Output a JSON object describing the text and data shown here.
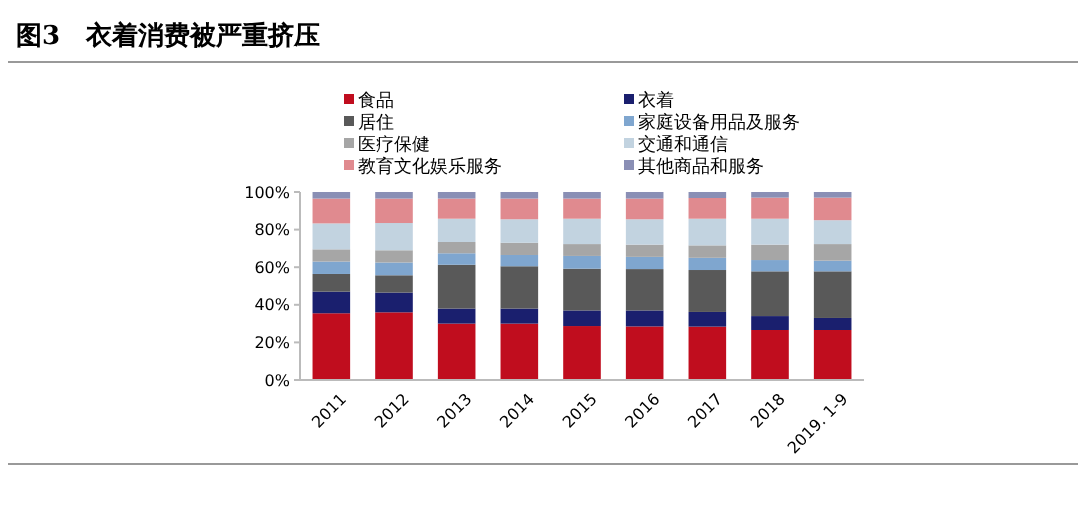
{
  "chart_data": {
    "type": "bar",
    "title": "图3　衣着消费被严重挤压",
    "stacked": true,
    "legend": "top",
    "grid": false,
    "categories": [
      "2011",
      "2012",
      "2013",
      "2014",
      "2015",
      "2016",
      "2017",
      "2018",
      "2019. 1-9"
    ],
    "ylim": [
      0,
      100
    ],
    "yticks": [
      {
        "value": 0,
        "label": "0%"
      },
      {
        "value": 20,
        "label": "20%"
      },
      {
        "value": 40,
        "label": "40%"
      },
      {
        "value": 60,
        "label": "60%"
      },
      {
        "value": 80,
        "label": "80%"
      },
      {
        "value": 100,
        "label": "100%"
      }
    ],
    "series": [
      {
        "name": "食品",
        "color": "#c00d1e",
        "values": [
          35.5,
          36,
          30,
          30,
          28.7,
          28.5,
          28.4,
          26.6,
          26.6
        ]
      },
      {
        "name": "衣着",
        "color": "#1a1f6e",
        "values": [
          11.5,
          10.5,
          8,
          8,
          8.3,
          8.5,
          7.8,
          7.4,
          6.4
        ]
      },
      {
        "name": "居住",
        "color": "#595959",
        "values": [
          9.4,
          9.2,
          23.3,
          22.5,
          22.2,
          22,
          22.3,
          23.8,
          24.8
        ]
      },
      {
        "name": "家庭设备用品及服务",
        "color": "#7fa6cf",
        "values": [
          6.6,
          6.8,
          6.1,
          6,
          6.8,
          6.5,
          6.5,
          6,
          5.7
        ]
      },
      {
        "name": "医疗保健",
        "color": "#a6a6a6",
        "values": [
          6.5,
          6.5,
          6,
          6.5,
          6.3,
          6.5,
          6.6,
          8.2,
          8.8
        ]
      },
      {
        "name": "交通和通信",
        "color": "#c2d3e0",
        "values": [
          13.8,
          14.5,
          12.4,
          12.5,
          13.5,
          13.5,
          14.2,
          13.8,
          12.7
        ]
      },
      {
        "name": "教育文化娱乐服务",
        "color": "#e08a8f",
        "values": [
          13.2,
          13,
          10.7,
          11,
          10.7,
          11,
          11,
          11.2,
          12
        ]
      },
      {
        "name": "其他商品和服务",
        "color": "#8a8fb5",
        "values": [
          3.5,
          3.5,
          3.5,
          3.5,
          3.5,
          3.5,
          3.2,
          3,
          3
        ]
      }
    ]
  }
}
